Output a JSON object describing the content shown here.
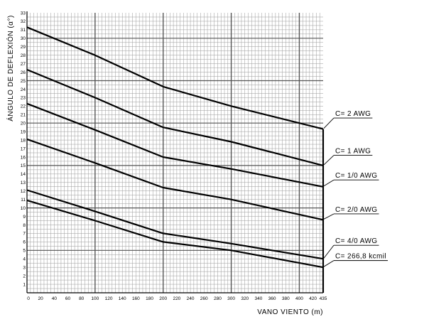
{
  "chart_data": {
    "type": "line",
    "title": "",
    "xlabel": "VANO VIENTO (m)",
    "ylabel": "ÁNGULO DE DEFLEXIÓN (α°)",
    "xlim": [
      0,
      435
    ],
    "ylim": [
      0,
      33
    ],
    "x_ticks": [
      0,
      20,
      40,
      60,
      80,
      100,
      120,
      140,
      160,
      180,
      200,
      220,
      240,
      260,
      280,
      300,
      320,
      340,
      360,
      380,
      400,
      420,
      435
    ],
    "y_ticks": [
      1,
      2,
      3,
      4,
      5,
      6,
      7,
      8,
      9,
      10,
      11,
      12,
      13,
      14,
      15,
      16,
      17,
      18,
      19,
      20,
      21,
      22,
      23,
      24,
      25,
      26,
      27,
      28,
      29,
      30,
      31,
      32,
      33
    ],
    "grid": true,
    "legend": "annotations-right",
    "series": [
      {
        "name": "C=  2  AWG",
        "x": [
          0,
          100,
          200,
          300,
          435
        ],
        "y": [
          31.3,
          28,
          24.3,
          22,
          19.3
        ],
        "label_y": 20.6
      },
      {
        "name": "C= 1  AWG",
        "x": [
          0,
          100,
          200,
          300,
          435
        ],
        "y": [
          26.3,
          23,
          19.5,
          17.8,
          15
        ],
        "label_y": 16.2
      },
      {
        "name": "C=  1/0  AWG",
        "x": [
          0,
          100,
          200,
          300,
          435
        ],
        "y": [
          22.3,
          19.2,
          16,
          14.6,
          12.5
        ],
        "label_y": 13.3
      },
      {
        "name": "C=  2/0  AWG",
        "x": [
          0,
          100,
          200,
          300,
          435
        ],
        "y": [
          18.1,
          15.3,
          12.4,
          11,
          8.6
        ],
        "label_y": 9.3
      },
      {
        "name": "C=  4/0  AWG",
        "x": [
          0,
          100,
          200,
          300,
          435
        ],
        "y": [
          12.1,
          9.6,
          7,
          5.8,
          4
        ],
        "label_y": 5.6
      },
      {
        "name": "C=  266,8  kcmil",
        "x": [
          0,
          100,
          200,
          300,
          435
        ],
        "y": [
          10.9,
          8.5,
          6,
          5,
          3
        ],
        "label_y": 3.8
      }
    ]
  }
}
